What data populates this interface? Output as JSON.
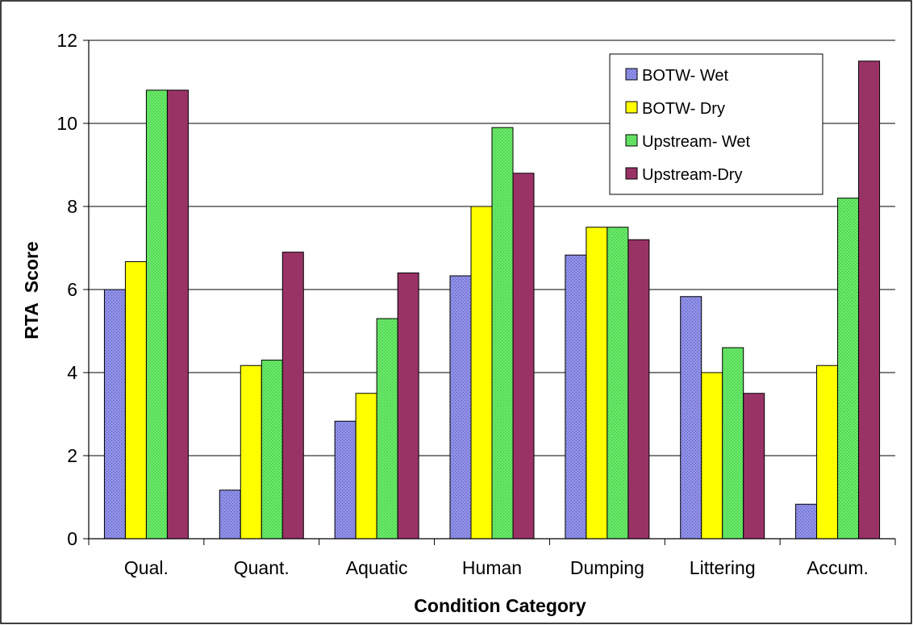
{
  "chart_data": {
    "type": "bar",
    "title": "",
    "xlabel": "Condition Category",
    "ylabel": "RTA  Score",
    "ylim": [
      0,
      12
    ],
    "yticks": [
      "0",
      "2",
      "4",
      "6",
      "8",
      "10",
      "12"
    ],
    "categories": [
      "Qual.",
      "Quant.",
      "Aquatic",
      "Human",
      "Dumping",
      "Littering",
      "Accum."
    ],
    "series": [
      {
        "name": "BOTW- Wet",
        "color": "#8f8fe6",
        "values": [
          6.0,
          1.17,
          2.83,
          6.33,
          6.83,
          5.83,
          0.83
        ]
      },
      {
        "name": "BOTW- Dry",
        "color": "#ffff00",
        "values": [
          6.67,
          4.17,
          3.5,
          8.0,
          7.5,
          4.0,
          4.17
        ]
      },
      {
        "name": "Upstream- Wet",
        "color": "#66e666",
        "values": [
          10.8,
          4.3,
          5.3,
          9.9,
          7.5,
          4.6,
          8.2
        ]
      },
      {
        "name": "Upstream-Dry",
        "color": "#993366",
        "values": [
          10.8,
          6.9,
          6.4,
          8.8,
          7.2,
          3.5,
          11.5
        ]
      }
    ],
    "grid": true,
    "legend": "top-right"
  }
}
